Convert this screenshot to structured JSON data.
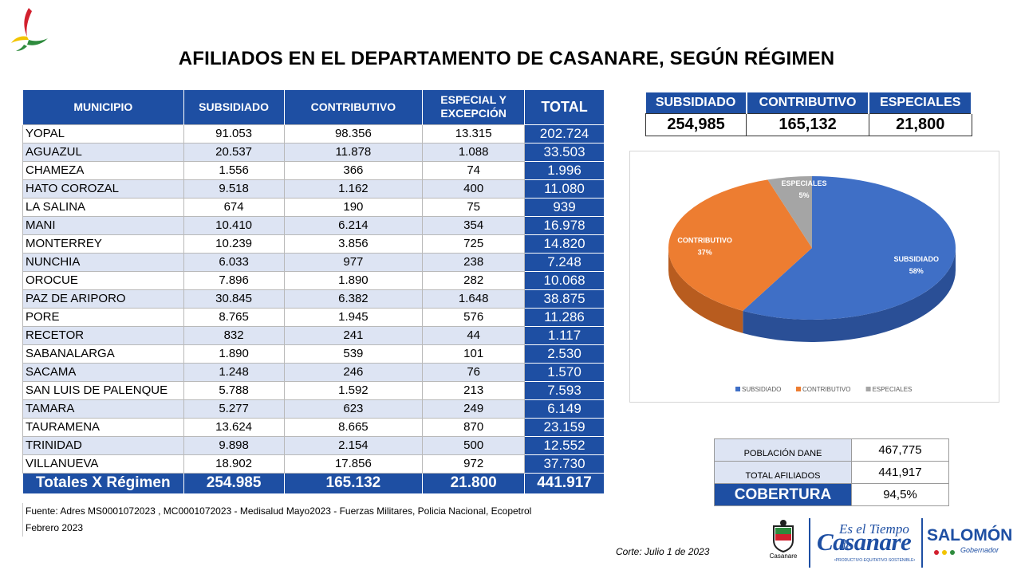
{
  "title": "AFILIADOS EN EL DEPARTAMENTO DE CASANARE, SEGÚN RÉGIMEN",
  "table": {
    "headers": [
      "MUNICIPIO",
      "SUBSIDIADO",
      "CONTRIBUTIVO",
      "ESPECIAL Y EXCEPCIÓN",
      "TOTAL"
    ],
    "rows": [
      [
        "YOPAL",
        "91.053",
        "98.356",
        "13.315",
        "202.724"
      ],
      [
        "AGUAZUL",
        "20.537",
        "11.878",
        "1.088",
        "33.503"
      ],
      [
        "CHAMEZA",
        "1.556",
        "366",
        "74",
        "1.996"
      ],
      [
        "HATO COROZAL",
        "9.518",
        "1.162",
        "400",
        "11.080"
      ],
      [
        "LA SALINA",
        "674",
        "190",
        "75",
        "939"
      ],
      [
        "MANI",
        "10.410",
        "6.214",
        "354",
        "16.978"
      ],
      [
        "MONTERREY",
        "10.239",
        "3.856",
        "725",
        "14.820"
      ],
      [
        "NUNCHIA",
        "6.033",
        "977",
        "238",
        "7.248"
      ],
      [
        "OROCUE",
        "7.896",
        "1.890",
        "282",
        "10.068"
      ],
      [
        "PAZ DE ARIPORO",
        "30.845",
        "6.382",
        "1.648",
        "38.875"
      ],
      [
        "PORE",
        "8.765",
        "1.945",
        "576",
        "11.286"
      ],
      [
        "RECETOR",
        "832",
        "241",
        "44",
        "1.117"
      ],
      [
        "SABANALARGA",
        "1.890",
        "539",
        "101",
        "2.530"
      ],
      [
        "SACAMA",
        "1.248",
        "246",
        "76",
        "1.570"
      ],
      [
        "SAN LUIS DE PALENQUE",
        "5.788",
        "1.592",
        "213",
        "7.593"
      ],
      [
        "TAMARA",
        "5.277",
        "623",
        "249",
        "6.149"
      ],
      [
        "TAURAMENA",
        "13.624",
        "8.665",
        "870",
        "23.159"
      ],
      [
        "TRINIDAD",
        "9.898",
        "2.154",
        "500",
        "12.552"
      ],
      [
        "VILLANUEVA",
        "18.902",
        "17.856",
        "972",
        "37.730"
      ]
    ],
    "footer": [
      "Totales X Régimen",
      "254.985",
      "165.132",
      "21.800",
      "441.917"
    ]
  },
  "fuente": {
    "line1": "Fuente: Adres MS0001072023 ,  MC0001072023  - Medisalud Mayo2023 - Fuerzas Militares, Policia Nacional, Ecopetrol",
    "line2": "Febrero 2023"
  },
  "summary": {
    "headers": [
      "SUBSIDIADO",
      "CONTRIBUTIVO",
      "ESPECIALES"
    ],
    "values": [
      "254,985",
      "165,132",
      "21,800"
    ]
  },
  "chart_data": {
    "type": "pie",
    "title": "",
    "categories": [
      "SUBSIDIADO",
      "CONTRIBUTIVO",
      "ESPECIALES"
    ],
    "values": [
      58,
      37,
      5
    ],
    "labels": [
      "58%",
      "37%",
      "5%"
    ],
    "colors": [
      "#3f6fc6",
      "#ed7d31",
      "#a5a5a5"
    ],
    "legend": "bottom"
  },
  "cobertura": {
    "poblacion_label": "POBLACIÓN DANE",
    "poblacion_value": "467,775",
    "afiliados_label": "TOTAL AFILIADOS",
    "afiliados_value": "441,917",
    "cobertura_label": "COBERTURA",
    "cobertura_value": "94,5%"
  },
  "corte": "Corte: Julio 1 de 2023",
  "logos": {
    "escudo_label": "Casanare",
    "tiempo_line1": "Es el Tiempo de",
    "tiempo_line2": "Casanare",
    "tiempo_line3": "•PRODUCTIVO·EQUITATIVO·SOSTENIBLE•",
    "salomon_name": "SALOMÓN",
    "salomon_role": "Gobernador"
  }
}
